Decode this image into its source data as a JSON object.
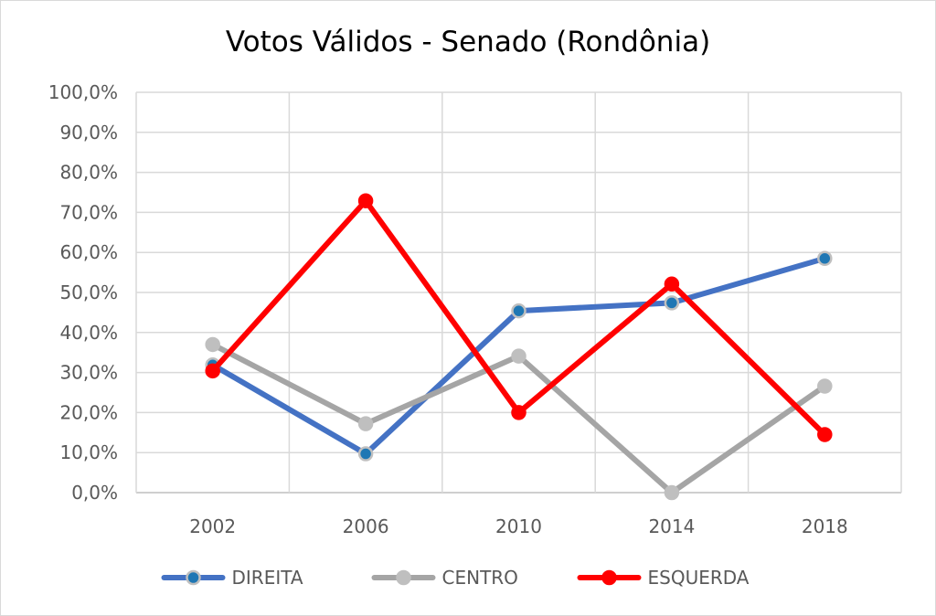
{
  "chart_data": {
    "type": "line",
    "title": "Votos Válidos  - Senado (Rondônia)",
    "xlabel": "",
    "ylabel": "",
    "categories": [
      "2002",
      "2006",
      "2010",
      "2014",
      "2018"
    ],
    "ylim": [
      0,
      100
    ],
    "yticks": [
      0,
      10,
      20,
      30,
      40,
      50,
      60,
      70,
      80,
      90,
      100
    ],
    "ytick_labels": [
      "0,0%",
      "10,0%",
      "20,0%",
      "30,0%",
      "40,0%",
      "50,0%",
      "60,0%",
      "70,0%",
      "80,0%",
      "90,0%",
      "100,0%"
    ],
    "grid": true,
    "legend_position": "bottom",
    "series": [
      {
        "name": "DIREITA",
        "color": "#4472C4",
        "marker_fill": "#1F77B4",
        "marker_edge": "#BFBFBF",
        "values": [
          31.9,
          9.7,
          45.4,
          47.4,
          58.5
        ]
      },
      {
        "name": "CENTRO",
        "color": "#A5A5A5",
        "marker_fill": "#BFBFBF",
        "marker_edge": "#BFBFBF",
        "values": [
          37.0,
          17.2,
          34.1,
          0.0,
          26.6
        ]
      },
      {
        "name": "ESQUERDA",
        "color": "#FF0000",
        "marker_fill": "#FF0000",
        "marker_edge": "#FF0000",
        "values": [
          30.4,
          72.9,
          20.0,
          52.1,
          14.5
        ]
      }
    ]
  }
}
